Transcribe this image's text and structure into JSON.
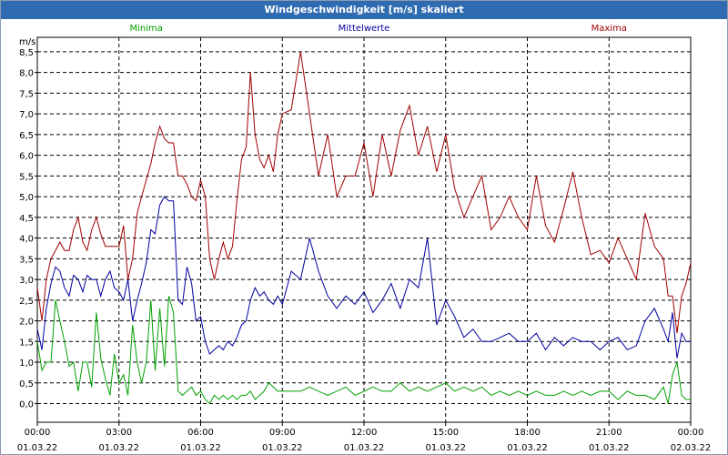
{
  "window": {
    "title": "Windgeschwindigkeit [m/s] skaliert"
  },
  "chart_data": {
    "type": "line",
    "title": "Windgeschwindigkeit [m/s] skaliert",
    "ylabel": "m/s",
    "xlabel": "",
    "ylim": [
      -0.45,
      8.85
    ],
    "xlim": [
      0,
      24
    ],
    "yticks": [
      0.0,
      0.5,
      1.0,
      1.5,
      2.0,
      2.5,
      3.0,
      3.5,
      4.0,
      4.5,
      5.0,
      5.5,
      6.0,
      6.5,
      7.0,
      7.5,
      8.0,
      8.5
    ],
    "ytick_labels": [
      "0,0",
      "0,5",
      "1,0",
      "1,5",
      "2,0",
      "2,5",
      "3,0",
      "3,5",
      "4,0",
      "4,5",
      "5,0",
      "5,5",
      "6,0",
      "6,5",
      "7,0",
      "7,5",
      "8,0",
      "8,5"
    ],
    "xticks": [
      {
        "x": 0,
        "time": "00:00",
        "date": "01.03.22"
      },
      {
        "x": 3,
        "time": "03:00",
        "date": "01.03.22"
      },
      {
        "x": 6,
        "time": "06:00",
        "date": "01.03.22"
      },
      {
        "x": 9,
        "time": "09:00",
        "date": "01.03.22"
      },
      {
        "x": 12,
        "time": "12:00",
        "date": "01.03.22"
      },
      {
        "x": 15,
        "time": "15:00",
        "date": "01.03.22"
      },
      {
        "x": 18,
        "time": "18:00",
        "date": "01.03.22"
      },
      {
        "x": 21,
        "time": "21:00",
        "date": "01.03.22"
      },
      {
        "x": 24,
        "time": "00:00",
        "date": "02.03.22"
      }
    ],
    "grid": true,
    "series": [
      {
        "name": "Minima",
        "color": "#00a000",
        "x": [
          0,
          0.17,
          0.33,
          0.5,
          0.67,
          0.83,
          1,
          1.17,
          1.33,
          1.5,
          1.67,
          1.83,
          2,
          2.17,
          2.33,
          2.5,
          2.67,
          2.83,
          3,
          3.17,
          3.33,
          3.5,
          3.67,
          3.83,
          4,
          4.17,
          4.33,
          4.5,
          4.67,
          4.83,
          5,
          5.17,
          5.33,
          5.5,
          5.67,
          5.83,
          6,
          6.17,
          6.33,
          6.5,
          6.67,
          6.83,
          7,
          7.17,
          7.33,
          7.5,
          7.67,
          7.83,
          8,
          8.17,
          8.33,
          8.5,
          8.67,
          8.83,
          9,
          9.33,
          9.67,
          10,
          10.33,
          10.67,
          11,
          11.33,
          11.67,
          12,
          12.33,
          12.67,
          13,
          13.33,
          13.67,
          14,
          14.33,
          14.67,
          15,
          15.33,
          15.67,
          16,
          16.33,
          16.67,
          17,
          17.33,
          17.67,
          18,
          18.33,
          18.67,
          19,
          19.33,
          19.67,
          20,
          20.33,
          20.67,
          21,
          21.33,
          21.67,
          22,
          22.33,
          22.67,
          23,
          23.17,
          23.33,
          23.5,
          23.67,
          23.83,
          24
        ],
        "values": [
          1.5,
          0.8,
          1.0,
          1.0,
          2.5,
          2.0,
          1.5,
          0.9,
          1.0,
          0.3,
          1.0,
          1.0,
          0.4,
          2.2,
          1.1,
          0.6,
          0.2,
          1.2,
          0.5,
          0.7,
          0.2,
          1.9,
          1.0,
          0.5,
          1.0,
          2.5,
          0.8,
          2.3,
          0.9,
          2.6,
          2.2,
          0.3,
          0.2,
          0.3,
          0.4,
          0.2,
          0.3,
          0.1,
          0.0,
          0.2,
          0.1,
          0.2,
          0.1,
          0.2,
          0.1,
          0.2,
          0.2,
          0.3,
          0.1,
          0.2,
          0.3,
          0.5,
          0.4,
          0.3,
          0.3,
          0.3,
          0.3,
          0.4,
          0.3,
          0.2,
          0.3,
          0.4,
          0.2,
          0.3,
          0.4,
          0.3,
          0.3,
          0.5,
          0.3,
          0.4,
          0.3,
          0.4,
          0.5,
          0.3,
          0.4,
          0.3,
          0.4,
          0.2,
          0.3,
          0.2,
          0.3,
          0.2,
          0.3,
          0.2,
          0.2,
          0.3,
          0.2,
          0.3,
          0.2,
          0.3,
          0.3,
          0.1,
          0.3,
          0.2,
          0.2,
          0.1,
          0.4,
          0.0,
          0.7,
          1.0,
          0.2,
          0.1,
          0.1
        ]
      },
      {
        "name": "Mittelwerte",
        "color": "#0000a0",
        "x": [
          0,
          0.17,
          0.33,
          0.5,
          0.67,
          0.83,
          1,
          1.17,
          1.33,
          1.5,
          1.67,
          1.83,
          2,
          2.17,
          2.33,
          2.5,
          2.67,
          2.83,
          3,
          3.17,
          3.33,
          3.5,
          3.67,
          3.83,
          4,
          4.17,
          4.33,
          4.5,
          4.67,
          4.83,
          5,
          5.17,
          5.33,
          5.5,
          5.67,
          5.83,
          6,
          6.17,
          6.33,
          6.5,
          6.67,
          6.83,
          7,
          7.17,
          7.33,
          7.5,
          7.67,
          7.83,
          8,
          8.17,
          8.33,
          8.5,
          8.67,
          8.83,
          9,
          9.33,
          9.67,
          10,
          10.33,
          10.67,
          11,
          11.33,
          11.67,
          12,
          12.33,
          12.67,
          13,
          13.33,
          13.67,
          14,
          14.33,
          14.67,
          15,
          15.33,
          15.67,
          16,
          16.33,
          16.67,
          17,
          17.33,
          17.67,
          18,
          18.33,
          18.67,
          19,
          19.33,
          19.67,
          20,
          20.33,
          20.67,
          21,
          21.33,
          21.67,
          22,
          22.33,
          22.67,
          23,
          23.17,
          23.33,
          23.5,
          23.67,
          23.83,
          24
        ],
        "values": [
          1.8,
          1.3,
          2.3,
          2.9,
          3.3,
          3.2,
          2.8,
          2.6,
          3.1,
          3.0,
          2.7,
          3.1,
          3.0,
          3.0,
          2.6,
          3.0,
          3.2,
          2.8,
          2.7,
          2.5,
          3.0,
          2.0,
          2.5,
          2.9,
          3.4,
          4.2,
          4.1,
          4.8,
          5.0,
          4.9,
          4.9,
          2.5,
          2.4,
          3.3,
          2.9,
          2.0,
          2.1,
          1.5,
          1.2,
          1.3,
          1.4,
          1.3,
          1.5,
          1.4,
          1.6,
          1.9,
          2.0,
          2.5,
          2.8,
          2.6,
          2.7,
          2.5,
          2.4,
          2.6,
          2.4,
          3.2,
          3.0,
          4.0,
          3.2,
          2.6,
          2.3,
          2.6,
          2.4,
          2.7,
          2.2,
          2.5,
          2.9,
          2.3,
          3.0,
          2.8,
          4.0,
          1.9,
          2.5,
          2.1,
          1.6,
          1.8,
          1.5,
          1.5,
          1.6,
          1.7,
          1.5,
          1.5,
          1.7,
          1.3,
          1.6,
          1.4,
          1.6,
          1.5,
          1.5,
          1.3,
          1.5,
          1.6,
          1.3,
          1.4,
          2.0,
          2.3,
          1.8,
          1.5,
          2.2,
          1.1,
          1.7,
          1.5,
          1.5
        ]
      },
      {
        "name": "Maxima",
        "color": "#a00000",
        "x": [
          0,
          0.17,
          0.33,
          0.5,
          0.67,
          0.83,
          1,
          1.17,
          1.33,
          1.5,
          1.67,
          1.83,
          2,
          2.17,
          2.33,
          2.5,
          2.67,
          2.83,
          3,
          3.17,
          3.33,
          3.5,
          3.67,
          3.83,
          4,
          4.17,
          4.33,
          4.5,
          4.67,
          4.83,
          5,
          5.17,
          5.33,
          5.5,
          5.67,
          5.83,
          6,
          6.17,
          6.33,
          6.5,
          6.67,
          6.83,
          7,
          7.17,
          7.33,
          7.5,
          7.67,
          7.83,
          8,
          8.17,
          8.33,
          8.5,
          8.67,
          8.83,
          9,
          9.33,
          9.67,
          10,
          10.33,
          10.67,
          11,
          11.33,
          11.67,
          12,
          12.33,
          12.67,
          13,
          13.33,
          13.67,
          14,
          14.33,
          14.67,
          15,
          15.33,
          15.67,
          16,
          16.33,
          16.67,
          17,
          17.33,
          17.67,
          18,
          18.33,
          18.67,
          19,
          19.33,
          19.67,
          20,
          20.33,
          20.67,
          21,
          21.33,
          21.67,
          22,
          22.33,
          22.67,
          23,
          23.17,
          23.33,
          23.5,
          23.67,
          23.83,
          24
        ],
        "values": [
          2.8,
          2.0,
          3.0,
          3.5,
          3.7,
          3.9,
          3.7,
          3.7,
          4.2,
          4.5,
          3.9,
          3.7,
          4.2,
          4.5,
          4.1,
          3.8,
          3.8,
          3.8,
          3.8,
          4.3,
          3.0,
          3.5,
          4.6,
          5.0,
          5.4,
          5.8,
          6.3,
          6.7,
          6.4,
          6.3,
          6.3,
          5.5,
          5.5,
          5.3,
          5.0,
          4.9,
          5.4,
          5.0,
          3.5,
          3.0,
          3.5,
          3.9,
          3.5,
          3.8,
          4.9,
          5.9,
          6.2,
          8.0,
          6.5,
          5.9,
          5.7,
          6.0,
          5.6,
          6.5,
          7.0,
          7.1,
          8.5,
          7.0,
          5.5,
          6.5,
          5.0,
          5.5,
          5.5,
          6.3,
          5.0,
          6.5,
          5.5,
          6.6,
          7.2,
          6.0,
          6.7,
          5.6,
          6.5,
          5.2,
          4.5,
          5.0,
          5.5,
          4.2,
          4.5,
          5.0,
          4.5,
          4.2,
          5.5,
          4.3,
          3.9,
          4.7,
          5.6,
          4.5,
          3.6,
          3.7,
          3.4,
          4.0,
          3.5,
          3.0,
          4.6,
          3.8,
          3.5,
          2.6,
          2.6,
          1.7,
          2.6,
          2.9,
          3.4
        ]
      }
    ]
  }
}
